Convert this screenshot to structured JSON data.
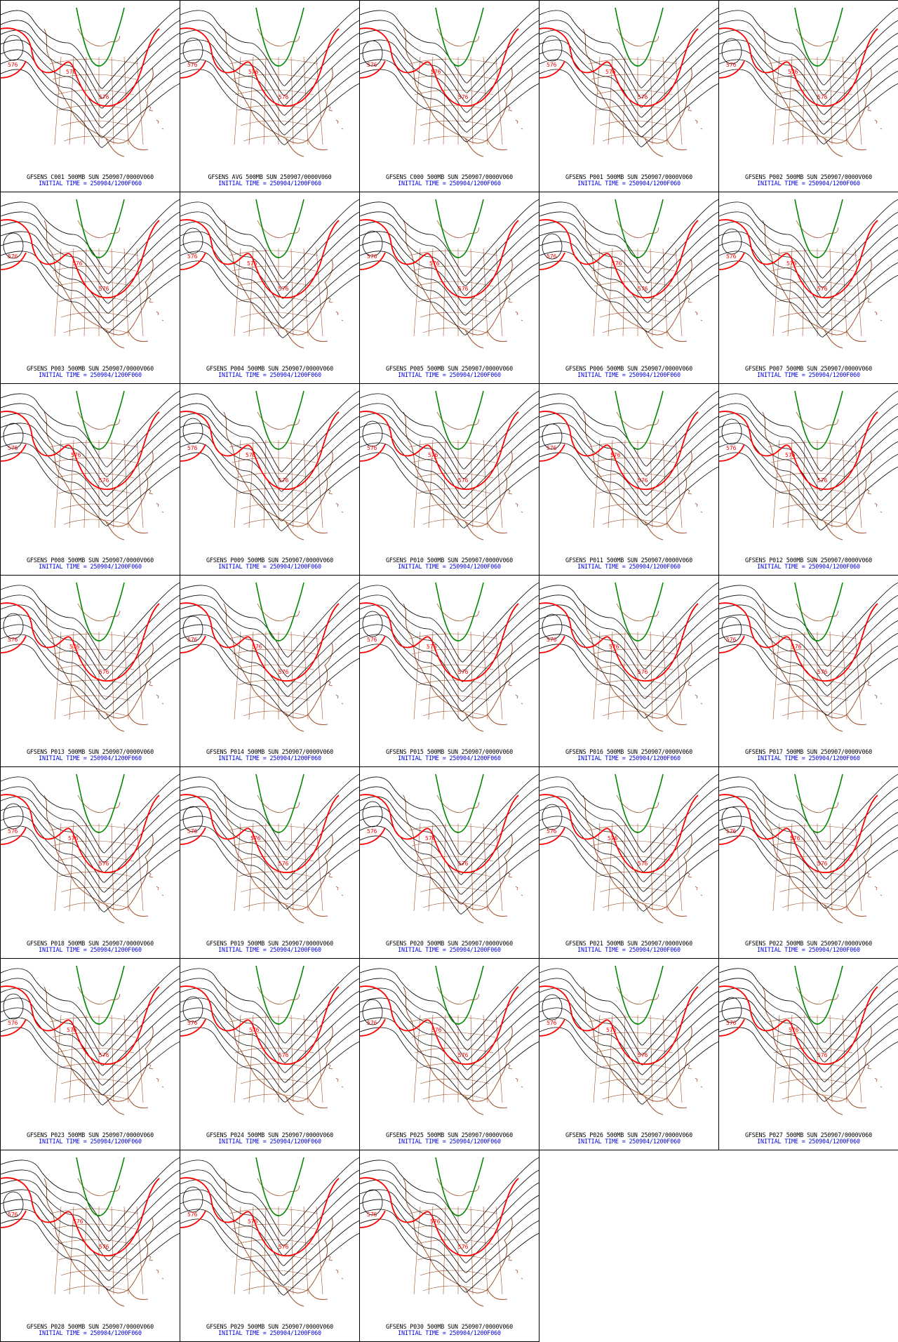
{
  "figure": {
    "grid_columns": 5,
    "contour_label": "576",
    "colors": {
      "background": "#ffffff",
      "border": "#000000",
      "contour": "#000000",
      "contour_576": "#ff0000",
      "contour_552": "#008800",
      "geography": "#a0522d",
      "initial_time_text": "#0000dd",
      "title_text": "#000000"
    },
    "init_line": "INITIAL TIME = 250904/1200F060"
  },
  "panels": [
    {
      "title": "GFSENS C001 500MB SUN 250907/0000V060"
    },
    {
      "title": "GFSENS AVG 500MB SUN 250907/0000V060"
    },
    {
      "title": "GFSENS C000 500MB SUN 250907/0000V060"
    },
    {
      "title": "GFSENS P001 500MB SUN 250907/0000V060"
    },
    {
      "title": "GFSENS P002 500MB SUN 250907/0000V060"
    },
    {
      "title": "GFSENS P003 500MB SUN 250907/0000V060"
    },
    {
      "title": "GFSENS P004 500MB SUN 250907/0000V060"
    },
    {
      "title": "GFSENS P005 500MB SUN 250907/0000V060"
    },
    {
      "title": "GFSENS P006 500MB SUN 250907/0000V060"
    },
    {
      "title": "GFSENS P007 500MB SUN 250907/0000V060"
    },
    {
      "title": "GFSENS P008 500MB SUN 250907/0000V060"
    },
    {
      "title": "GFSENS P009 500MB SUN 250907/0000V060"
    },
    {
      "title": "GFSENS P010 500MB SUN 250907/0000V060"
    },
    {
      "title": "GFSENS P011 500MB SUN 250907/0000V060"
    },
    {
      "title": "GFSENS P012 500MB SUN 250907/0000V060"
    },
    {
      "title": "GFSENS P013 500MB SUN 250907/0000V060"
    },
    {
      "title": "GFSENS P014 500MB SUN 250907/0000V060"
    },
    {
      "title": "GFSENS P015 500MB SUN 250907/0000V060"
    },
    {
      "title": "GFSENS P016 500MB SUN 250907/0000V060"
    },
    {
      "title": "GFSENS P017 500MB SUN 250907/0000V060"
    },
    {
      "title": "GFSENS P018 500MB SUN 250907/0000V060"
    },
    {
      "title": "GFSENS P019 500MB SUN 250907/0000V060"
    },
    {
      "title": "GFSENS P020 500MB SUN 250907/0000V060"
    },
    {
      "title": "GFSENS P021 500MB SUN 250907/0000V060"
    },
    {
      "title": "GFSENS P022 500MB SUN 250907/0000V060"
    },
    {
      "title": "GFSENS P023 500MB SUN 250907/0000V060"
    },
    {
      "title": "GFSENS P024 500MB SUN 250907/0000V060"
    },
    {
      "title": "GFSENS P025 500MB SUN 250907/0000V060"
    },
    {
      "title": "GFSENS P026 500MB SUN 250907/0000V060"
    },
    {
      "title": "GFSENS P027 500MB SUN 250907/0000V060"
    },
    {
      "title": "GFSENS P028 500MB SUN 250907/0000V060"
    },
    {
      "title": "GFSENS P029 500MB SUN 250907/0000V060"
    },
    {
      "title": "GFSENS P030 500MB SUN 250907/0000V060"
    }
  ]
}
